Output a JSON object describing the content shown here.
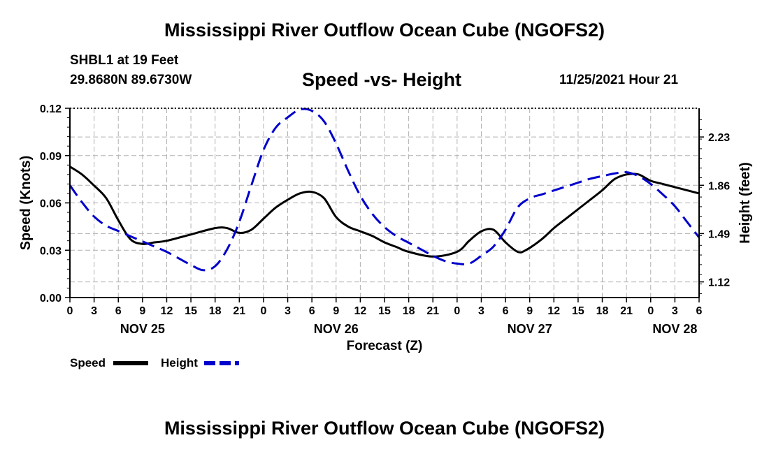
{
  "header": {
    "title": "Mississippi River Outflow Ocean Cube (NGOFS2)",
    "station": "SHBL1 at 19 Feet",
    "coords": "29.8680N  89.6730W",
    "subtitle": "Speed -vs- Height",
    "datestamp": "11/25/2021 Hour 21"
  },
  "footer": {
    "title": "Mississippi River Outflow Ocean Cube (NGOFS2)"
  },
  "legend": {
    "speed_label": "Speed",
    "height_label": "Height"
  },
  "colors": {
    "speed": "#000000",
    "height": "#0000cc",
    "grid": "#b0b0b0"
  },
  "chart_data": {
    "type": "line",
    "title": "Speed -vs- Height",
    "xlabel": "Forecast (Z)",
    "ylabel": "Speed (Knots)",
    "y2label": "Height (feet)",
    "xlim": [
      0,
      78
    ],
    "ylim": [
      0,
      0.12
    ],
    "y2lim": [
      1.0,
      2.45
    ],
    "yticks": [
      0,
      0.03,
      0.06,
      0.09,
      0.12
    ],
    "ytick_labels": [
      "0.00",
      "0.03",
      "0.06",
      "0.09",
      "0.12"
    ],
    "y2ticks": [
      1.12,
      1.49,
      1.86,
      2.23
    ],
    "y2tick_labels": [
      "1.12",
      "1.49",
      "1.86",
      "2.23"
    ],
    "xticks": [
      0,
      3,
      6,
      9,
      12,
      15,
      18,
      21,
      24,
      27,
      30,
      33,
      36,
      39,
      42,
      45,
      48,
      51,
      54,
      57,
      60,
      63,
      66,
      69,
      72,
      75,
      78
    ],
    "xtick_labels": [
      "0",
      "3",
      "6",
      "9",
      "12",
      "15",
      "18",
      "21",
      "0",
      "3",
      "6",
      "9",
      "12",
      "15",
      "18",
      "21",
      "0",
      "3",
      "6",
      "9",
      "12",
      "15",
      "18",
      "21",
      "0",
      "3",
      "6"
    ],
    "day_labels": [
      {
        "x": 9,
        "label": "NOV 25"
      },
      {
        "x": 33,
        "label": "NOV 26"
      },
      {
        "x": 57,
        "label": "NOV 27"
      },
      {
        "x": 75,
        "label": "NOV 28"
      }
    ],
    "series": [
      {
        "name": "Speed",
        "axis": "left",
        "style": "solid",
        "x": [
          0,
          1.5,
          3,
          4.5,
          6,
          7.5,
          9,
          10.5,
          12,
          15,
          18,
          19.5,
          21,
          22.5,
          24,
          25.5,
          27,
          28.5,
          30,
          31.5,
          33,
          34.5,
          36,
          37.5,
          39,
          40.5,
          42,
          45,
          48,
          49.5,
          51,
          52.5,
          54,
          55.5,
          56.5,
          58.5,
          60,
          61.5,
          63,
          64.5,
          66,
          67.5,
          69,
          70.5,
          72,
          73.5,
          75,
          76.5,
          78
        ],
        "values": [
          0.083,
          0.078,
          0.071,
          0.063,
          0.049,
          0.037,
          0.034,
          0.035,
          0.036,
          0.04,
          0.044,
          0.044,
          0.041,
          0.043,
          0.05,
          0.057,
          0.062,
          0.066,
          0.067,
          0.063,
          0.051,
          0.045,
          0.042,
          0.039,
          0.035,
          0.032,
          0.029,
          0.026,
          0.029,
          0.036,
          0.042,
          0.043,
          0.035,
          0.029,
          0.03,
          0.037,
          0.044,
          0.05,
          0.056,
          0.062,
          0.068,
          0.075,
          0.078,
          0.078,
          0.074,
          0.072,
          0.07,
          0.068,
          0.066
        ]
      },
      {
        "name": "Height",
        "axis": "right",
        "style": "dashed",
        "x": [
          0,
          1.5,
          3,
          4.5,
          6,
          7.5,
          9,
          10.5,
          12,
          13.5,
          15,
          16.5,
          18,
          19.5,
          21,
          22.5,
          24,
          25.5,
          27,
          28.5,
          30,
          31.5,
          33,
          34.5,
          36,
          37.5,
          39,
          40.5,
          42,
          43.5,
          45,
          46.5,
          48,
          49.5,
          51,
          52.5,
          54,
          55.5,
          57,
          58.5,
          60,
          61.5,
          63,
          64.5,
          66,
          67.5,
          69,
          70.5,
          72,
          73.5,
          75,
          76.5,
          78
        ],
        "values": [
          1.86,
          1.73,
          1.62,
          1.55,
          1.51,
          1.47,
          1.43,
          1.39,
          1.35,
          1.3,
          1.25,
          1.21,
          1.24,
          1.37,
          1.58,
          1.86,
          2.13,
          2.3,
          2.38,
          2.44,
          2.43,
          2.35,
          2.18,
          1.97,
          1.78,
          1.64,
          1.54,
          1.47,
          1.42,
          1.37,
          1.32,
          1.28,
          1.26,
          1.26,
          1.32,
          1.39,
          1.52,
          1.69,
          1.76,
          1.79,
          1.82,
          1.85,
          1.88,
          1.91,
          1.93,
          1.95,
          1.96,
          1.93,
          1.87,
          1.79,
          1.7,
          1.58,
          1.46
        ]
      }
    ]
  }
}
